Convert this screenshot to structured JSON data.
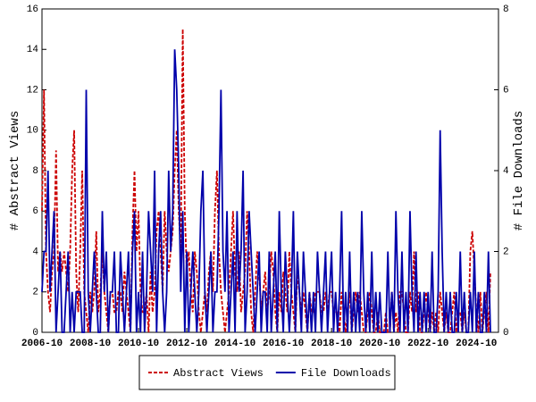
{
  "chart_data": {
    "type": "line",
    "x": [
      "2006-10",
      "2006-11",
      "2006-12",
      "2007-01",
      "2007-02",
      "2007-03",
      "2007-04",
      "2007-05",
      "2007-06",
      "2007-07",
      "2007-08",
      "2007-09",
      "2007-10",
      "2007-11",
      "2007-12",
      "2008-01",
      "2008-02",
      "2008-03",
      "2008-04",
      "2008-05",
      "2008-06",
      "2008-07",
      "2008-08",
      "2008-09",
      "2008-10",
      "2008-11",
      "2008-12",
      "2009-01",
      "2009-02",
      "2009-03",
      "2009-04",
      "2009-05",
      "2009-06",
      "2009-07",
      "2009-08",
      "2009-09",
      "2009-10",
      "2009-11",
      "2009-12",
      "2010-01",
      "2010-02",
      "2010-03",
      "2010-04",
      "2010-05",
      "2010-06",
      "2010-07",
      "2010-08",
      "2010-09",
      "2010-10",
      "2010-11",
      "2010-12",
      "2011-01",
      "2011-02",
      "2011-03",
      "2011-04",
      "2011-05",
      "2011-06",
      "2011-07",
      "2011-08",
      "2011-09",
      "2011-10",
      "2011-11",
      "2011-12",
      "2012-01",
      "2012-02",
      "2012-03",
      "2012-04",
      "2012-05",
      "2012-06",
      "2012-07",
      "2012-08",
      "2012-09",
      "2012-10",
      "2012-11",
      "2012-12",
      "2013-01",
      "2013-02",
      "2013-03",
      "2013-04",
      "2013-05",
      "2013-06",
      "2013-07",
      "2013-08",
      "2013-09",
      "2013-10",
      "2013-11",
      "2013-12",
      "2014-01",
      "2014-02",
      "2014-03",
      "2014-04",
      "2014-05",
      "2014-06",
      "2014-07",
      "2014-08",
      "2014-09",
      "2014-10",
      "2014-11",
      "2014-12",
      "2015-01",
      "2015-02",
      "2015-03",
      "2015-04",
      "2015-05",
      "2015-06",
      "2015-07",
      "2015-08",
      "2015-09",
      "2015-10",
      "2015-11",
      "2015-12",
      "2016-01",
      "2016-02",
      "2016-03",
      "2016-04",
      "2016-05",
      "2016-06",
      "2016-07",
      "2016-08",
      "2016-09",
      "2016-10",
      "2016-11",
      "2016-12",
      "2017-01",
      "2017-02",
      "2017-03",
      "2017-04",
      "2017-05",
      "2017-06",
      "2017-07",
      "2017-08",
      "2017-09",
      "2017-10",
      "2017-11",
      "2017-12",
      "2018-01",
      "2018-02",
      "2018-03",
      "2018-04",
      "2018-05",
      "2018-06",
      "2018-07",
      "2018-08",
      "2018-09",
      "2018-10",
      "2018-11",
      "2018-12",
      "2019-01",
      "2019-02",
      "2019-03",
      "2019-04",
      "2019-05",
      "2019-06",
      "2019-07",
      "2019-08",
      "2019-09",
      "2019-10",
      "2019-11",
      "2019-12",
      "2020-01",
      "2020-02",
      "2020-03",
      "2020-04",
      "2020-05",
      "2020-06",
      "2020-07",
      "2020-08",
      "2020-09",
      "2020-10",
      "2020-11",
      "2020-12",
      "2021-01",
      "2021-02",
      "2021-03",
      "2021-04",
      "2021-05",
      "2021-06",
      "2021-07",
      "2021-08",
      "2021-09",
      "2021-10",
      "2021-11",
      "2021-12",
      "2022-01",
      "2022-02",
      "2022-03",
      "2022-04",
      "2022-05",
      "2022-06",
      "2022-07",
      "2022-08",
      "2022-09",
      "2022-10",
      "2022-11",
      "2022-12",
      "2023-01",
      "2023-02",
      "2023-03",
      "2023-04",
      "2023-05",
      "2023-06",
      "2023-07",
      "2023-08",
      "2023-09",
      "2023-10",
      "2023-11",
      "2023-12",
      "2024-01",
      "2024-02",
      "2024-03",
      "2024-04",
      "2024-05",
      "2024-06",
      "2024-07",
      "2024-08",
      "2024-09",
      "2024-10",
      "2024-11",
      "2024-12",
      "2025-01",
      "2025-02",
      "2025-03",
      "2025-04",
      "2025-05"
    ],
    "xticks": [
      "2006-10",
      "2008-10",
      "2010-10",
      "2012-10",
      "2014-10",
      "2016-10",
      "2018-10",
      "2020-10",
      "2022-10",
      "2024-10"
    ],
    "ylabel": "# Abstract Views",
    "y2label": "# File Downloads",
    "ylim": [
      0,
      16
    ],
    "yticks": [
      0,
      2,
      4,
      6,
      8,
      10,
      12,
      14,
      16
    ],
    "y2lim": [
      0,
      8
    ],
    "y2ticks": [
      0,
      2,
      4,
      6,
      8
    ],
    "legend": "bottom",
    "series": [
      {
        "name": "Abstract Views",
        "color": "#cc0000",
        "dash": true,
        "values": [
          6,
          12,
          4,
          2,
          1,
          3,
          4,
          9,
          3,
          4,
          3,
          4,
          3,
          2,
          4,
          8,
          10,
          3,
          1,
          4,
          8,
          2,
          1,
          0,
          2,
          1,
          2,
          5,
          1,
          2,
          4,
          2,
          1,
          0,
          2,
          2,
          1,
          1,
          2,
          2,
          1,
          3,
          2,
          1,
          0,
          5,
          8,
          4,
          6,
          2,
          1,
          1,
          2,
          0,
          3,
          1,
          2,
          5,
          6,
          4,
          2,
          6,
          4,
          3,
          4,
          5,
          8,
          10,
          6,
          4,
          15,
          6,
          3,
          4,
          2,
          1,
          4,
          3,
          1,
          0,
          1,
          2,
          1,
          3,
          4,
          2,
          6,
          8,
          4,
          2,
          1,
          0,
          1,
          2,
          4,
          6,
          3,
          2,
          4,
          1,
          2,
          3,
          6,
          4,
          1,
          0,
          2,
          4,
          3,
          1,
          2,
          3,
          1,
          2,
          4,
          3,
          1,
          0,
          2,
          1,
          3,
          2,
          1,
          4,
          2,
          1,
          0,
          3,
          2,
          1,
          2,
          1,
          0,
          2,
          1,
          1,
          2,
          2,
          2,
          1,
          1,
          2,
          1,
          2,
          2,
          1,
          1,
          1,
          0,
          2,
          1,
          0,
          1,
          2,
          0,
          1,
          2,
          1,
          2,
          1,
          0,
          0,
          1,
          2,
          1,
          0,
          0,
          1,
          0,
          0,
          0,
          1,
          0,
          0,
          2,
          0,
          1,
          0,
          2,
          2,
          1,
          0,
          0,
          2,
          1,
          4,
          1,
          2,
          0,
          0,
          1,
          2,
          1,
          0,
          1,
          0,
          1,
          0,
          2,
          1,
          0,
          1,
          0,
          0,
          1,
          2,
          0,
          1,
          1,
          0,
          1,
          0,
          0,
          4,
          5,
          3,
          1,
          0,
          2,
          0,
          1,
          2,
          0,
          3
        ]
      },
      {
        "name": "File Downloads",
        "color": "#0000aa",
        "axis": "y2",
        "values": [
          1,
          2,
          2,
          4,
          1,
          2,
          3,
          0,
          1,
          2,
          0,
          0,
          1,
          2,
          0,
          1,
          0,
          1,
          1,
          1,
          0,
          0,
          6,
          1,
          0,
          1,
          2,
          1,
          0,
          0,
          3,
          1,
          2,
          0,
          1,
          1,
          2,
          0,
          0,
          2,
          1,
          0,
          1,
          2,
          0,
          2,
          3,
          0,
          1,
          0,
          2,
          0,
          1,
          3,
          2,
          1,
          4,
          0,
          2,
          3,
          1,
          0,
          1,
          4,
          2,
          3,
          7,
          6,
          4,
          1,
          3,
          0,
          2,
          0,
          1,
          2,
          1,
          0,
          1,
          3,
          4,
          1,
          0,
          1,
          2,
          0,
          1,
          1,
          3,
          6,
          2,
          1,
          3,
          0,
          1,
          2,
          0,
          3,
          1,
          2,
          4,
          0,
          1,
          3,
          2,
          1,
          0,
          1,
          2,
          0,
          1,
          1,
          0,
          2,
          0,
          1,
          2,
          0,
          3,
          1,
          0,
          2,
          1,
          0,
          1,
          3,
          0,
          2,
          1,
          0,
          2,
          1,
          0,
          1,
          0,
          1,
          0,
          2,
          1,
          0,
          1,
          2,
          0,
          1,
          2,
          0,
          1,
          0,
          1,
          3,
          0,
          1,
          0,
          2,
          0,
          1,
          0,
          1,
          0,
          3,
          1,
          0,
          1,
          0,
          2,
          0,
          1,
          0,
          1,
          0,
          0,
          0,
          2,
          0,
          1,
          0,
          3,
          1,
          0,
          2,
          0,
          1,
          0,
          3,
          1,
          0,
          2,
          0,
          1,
          0,
          1,
          0,
          1,
          0,
          2,
          0,
          0,
          1,
          5,
          2,
          0,
          1,
          0,
          1,
          0,
          0,
          1,
          0,
          2,
          0,
          1,
          0,
          0,
          1,
          0,
          2,
          0,
          1,
          0,
          0,
          1,
          0,
          2,
          0
        ]
      }
    ]
  }
}
